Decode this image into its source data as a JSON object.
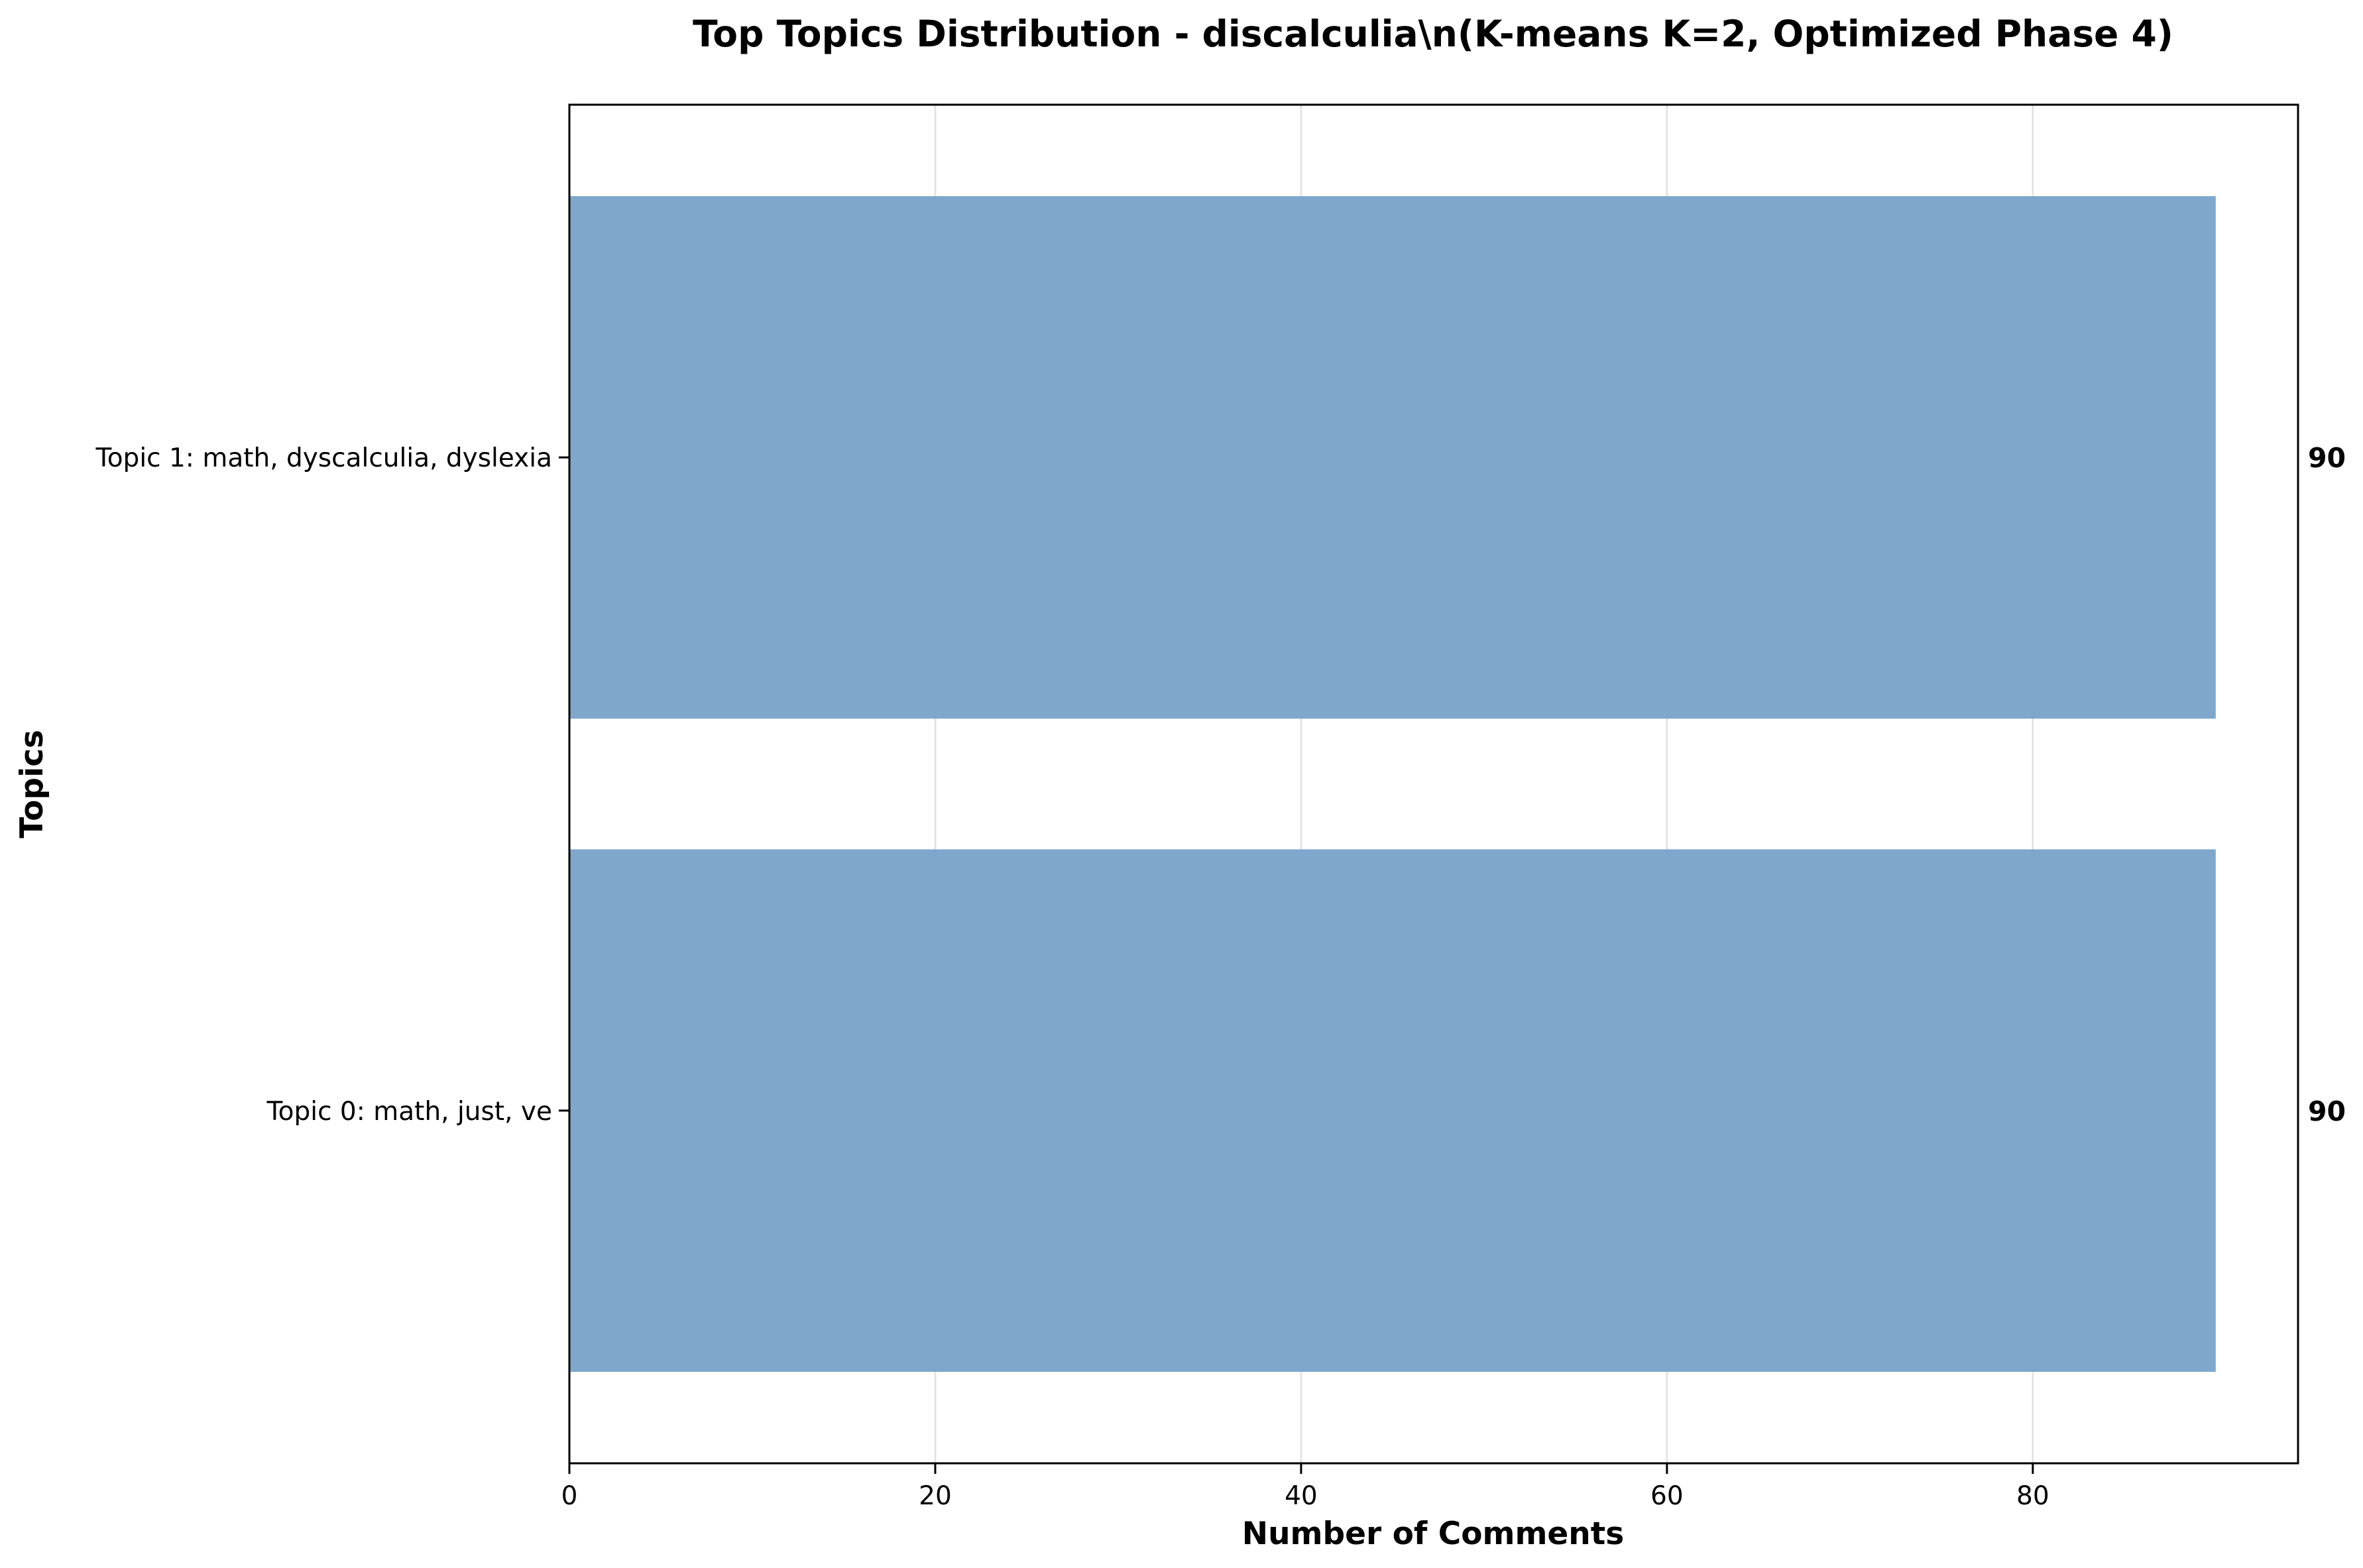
{
  "chart_data": {
    "type": "bar",
    "orientation": "horizontal",
    "title": "Top Topics Distribution - discalculia\\n(K-means K=2, Optimized Phase 4)",
    "xlabel": "Number of Comments",
    "ylabel": "Topics",
    "categories": [
      "Topic 0: math, just, ve",
      "Topic 1: math, dyscalculia, dyslexia"
    ],
    "values": [
      90,
      90
    ],
    "data_labels": [
      "90",
      "90"
    ],
    "xlim": [
      0,
      94.5
    ],
    "xticks": [
      0,
      20,
      40,
      60,
      80
    ],
    "xtick_labels": [
      "0",
      "20",
      "40",
      "60",
      "80"
    ],
    "grid": "vertical",
    "bar_color": "#7ea7cb"
  }
}
